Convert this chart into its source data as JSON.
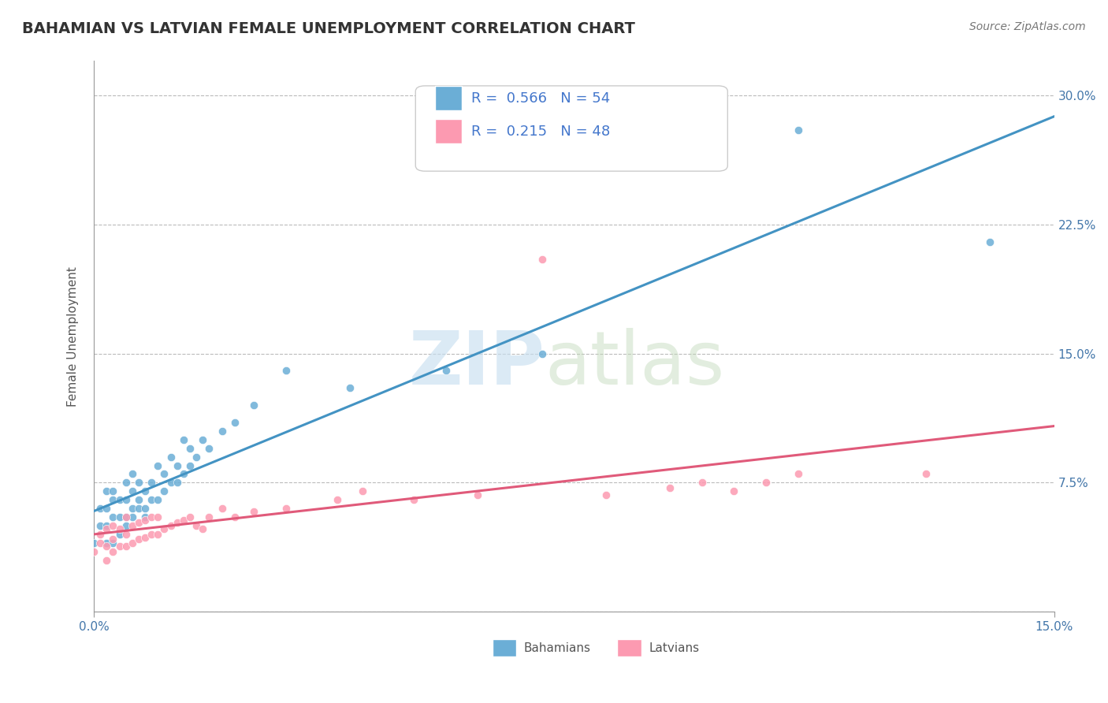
{
  "title": "BAHAMIAN VS LATVIAN FEMALE UNEMPLOYMENT CORRELATION CHART",
  "source": "Source: ZipAtlas.com",
  "ylabel": "Female Unemployment",
  "xlim": [
    0.0,
    0.15
  ],
  "ylim": [
    0.0,
    0.32
  ],
  "yticks": [
    0.0,
    0.075,
    0.15,
    0.225,
    0.3
  ],
  "yticklabels": [
    "",
    "7.5%",
    "15.0%",
    "22.5%",
    "30.0%"
  ],
  "background_color": "#ffffff",
  "bahamian_color": "#6baed6",
  "latvian_color": "#fc9ab1",
  "trend_blue": "#4393c3",
  "trend_pink": "#e05a7a",
  "legend_R_blue": "0.566",
  "legend_N_blue": "54",
  "legend_R_pink": "0.215",
  "legend_N_pink": "48",
  "bahamian_x": [
    0.0,
    0.001,
    0.001,
    0.002,
    0.002,
    0.002,
    0.002,
    0.003,
    0.003,
    0.003,
    0.003,
    0.004,
    0.004,
    0.004,
    0.005,
    0.005,
    0.005,
    0.005,
    0.006,
    0.006,
    0.006,
    0.006,
    0.007,
    0.007,
    0.007,
    0.008,
    0.008,
    0.008,
    0.009,
    0.009,
    0.01,
    0.01,
    0.011,
    0.011,
    0.012,
    0.012,
    0.013,
    0.013,
    0.014,
    0.014,
    0.015,
    0.015,
    0.016,
    0.017,
    0.018,
    0.02,
    0.022,
    0.025,
    0.03,
    0.04,
    0.055,
    0.07,
    0.11,
    0.14
  ],
  "bahamian_y": [
    0.04,
    0.05,
    0.06,
    0.04,
    0.05,
    0.06,
    0.07,
    0.04,
    0.055,
    0.065,
    0.07,
    0.045,
    0.055,
    0.065,
    0.05,
    0.055,
    0.065,
    0.075,
    0.055,
    0.06,
    0.07,
    0.08,
    0.06,
    0.065,
    0.075,
    0.055,
    0.06,
    0.07,
    0.065,
    0.075,
    0.065,
    0.085,
    0.07,
    0.08,
    0.075,
    0.09,
    0.075,
    0.085,
    0.08,
    0.1,
    0.085,
    0.095,
    0.09,
    0.1,
    0.095,
    0.105,
    0.11,
    0.12,
    0.14,
    0.13,
    0.14,
    0.15,
    0.28,
    0.215
  ],
  "latvian_x": [
    0.0,
    0.001,
    0.001,
    0.002,
    0.002,
    0.002,
    0.003,
    0.003,
    0.003,
    0.004,
    0.004,
    0.005,
    0.005,
    0.005,
    0.006,
    0.006,
    0.007,
    0.007,
    0.008,
    0.008,
    0.009,
    0.009,
    0.01,
    0.01,
    0.011,
    0.012,
    0.013,
    0.014,
    0.015,
    0.016,
    0.017,
    0.018,
    0.02,
    0.022,
    0.025,
    0.03,
    0.038,
    0.042,
    0.05,
    0.06,
    0.07,
    0.08,
    0.09,
    0.095,
    0.1,
    0.105,
    0.11,
    0.13
  ],
  "latvian_y": [
    0.035,
    0.04,
    0.045,
    0.03,
    0.038,
    0.048,
    0.035,
    0.042,
    0.05,
    0.038,
    0.048,
    0.038,
    0.045,
    0.055,
    0.04,
    0.05,
    0.042,
    0.052,
    0.043,
    0.053,
    0.045,
    0.055,
    0.045,
    0.055,
    0.048,
    0.05,
    0.052,
    0.053,
    0.055,
    0.05,
    0.048,
    0.055,
    0.06,
    0.055,
    0.058,
    0.06,
    0.065,
    0.07,
    0.065,
    0.068,
    0.205,
    0.068,
    0.072,
    0.075,
    0.07,
    0.075,
    0.08,
    0.08
  ],
  "title_fontsize": 14,
  "axis_label_fontsize": 11,
  "tick_fontsize": 11,
  "legend_fontsize": 13,
  "source_fontsize": 10
}
